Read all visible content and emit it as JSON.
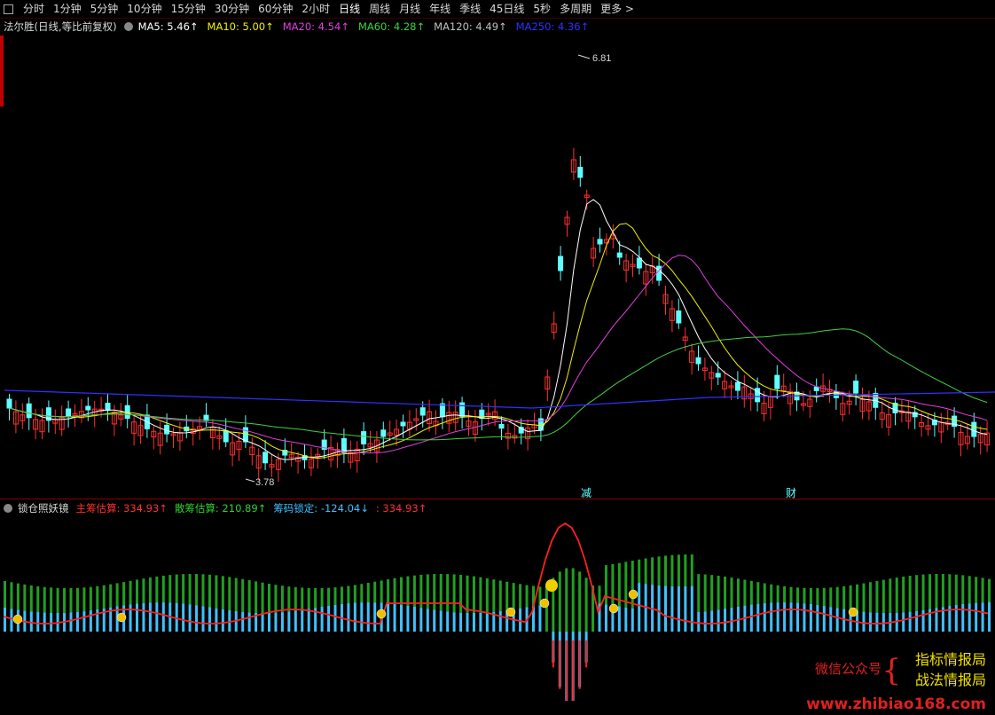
{
  "toolbar": {
    "items": [
      "分时",
      "1分钟",
      "5分钟",
      "10分钟",
      "15分钟",
      "30分钟",
      "60分钟",
      "2小时",
      "日线",
      "周线",
      "月线",
      "年线",
      "季线",
      "45日线",
      "5秒",
      "多周期",
      "更多 >"
    ]
  },
  "stock": {
    "title": "法尔胜(日线,等比前复权)",
    "ma": [
      {
        "label": "MA5: 5.46↑",
        "color": "#ffffff"
      },
      {
        "label": "MA10: 5.00↑",
        "color": "#f0f000"
      },
      {
        "label": "MA20: 4.54↑",
        "color": "#e040e0"
      },
      {
        "label": "MA60: 4.28↑",
        "color": "#40d040"
      },
      {
        "label": "MA120: 4.49↑",
        "color": "#c0c0c0"
      },
      {
        "label": "MA250: 4.36↑",
        "color": "#3030ff"
      }
    ],
    "high_label": "6.81",
    "low_label": "3.78",
    "marker1": "减",
    "marker2": "财"
  },
  "indicator": {
    "name": "锁仓照妖镜",
    "items": [
      {
        "label": "主筹估算: 334.93↑",
        "color": "#ff3030"
      },
      {
        "label": "散筹估算: 210.89↑",
        "color": "#30d030"
      },
      {
        "label": "筹码锁定: -124.04↓",
        "color": "#40c0ff"
      },
      {
        "label": ": 334.93↑",
        "color": "#ff3030"
      }
    ]
  },
  "watermark": {
    "left": "微信公众号",
    "right1": "指标情报局",
    "right2": "战法情报局",
    "url": "www.zhibiao168.com"
  },
  "colors": {
    "up": "#ff3030",
    "down": "#60ffff",
    "bg": "#000000"
  }
}
